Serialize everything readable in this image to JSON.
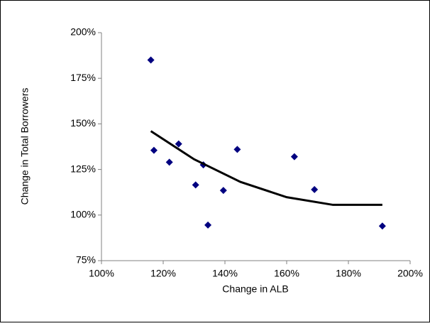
{
  "chart_data": {
    "type": "scatter",
    "xlabel": "Change in ALB",
    "ylabel": "Change in Total Borrowers",
    "x": [
      116,
      117,
      122,
      125,
      130.5,
      133,
      134.5,
      139.5,
      144,
      162.5,
      169,
      191
    ],
    "values": [
      185,
      135.5,
      129,
      139,
      116.5,
      127.5,
      94.5,
      113.5,
      136,
      132,
      114,
      94
    ],
    "color": "#000080",
    "trendline": {
      "x": [
        116,
        130,
        145,
        160,
        175,
        191
      ],
      "values": [
        146,
        130.6,
        118.2,
        109.8,
        105.6,
        105.6
      ],
      "color": "#000000"
    },
    "xlim": [
      100,
      200
    ],
    "xticks": [
      {
        "value": 100,
        "label": "100%"
      },
      {
        "value": 120,
        "label": "120%"
      },
      {
        "value": 140,
        "label": "140%"
      },
      {
        "value": 160,
        "label": "160%"
      },
      {
        "value": 180,
        "label": "180%"
      },
      {
        "value": 200,
        "label": "200%"
      }
    ],
    "ylim": [
      75,
      200
    ],
    "yticks": [
      {
        "value": 75,
        "label": "75%"
      },
      {
        "value": 100,
        "label": "100%"
      },
      {
        "value": 125,
        "label": "125%"
      },
      {
        "value": 150,
        "label": "150%"
      },
      {
        "value": 175,
        "label": "175%"
      },
      {
        "value": 200,
        "label": "200%"
      }
    ],
    "grid": false
  }
}
